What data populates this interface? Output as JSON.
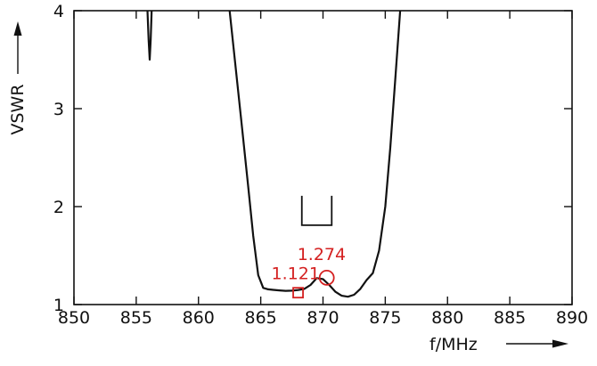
{
  "chart_data": {
    "type": "line",
    "xlabel": "f/MHz",
    "ylabel": "VSWR",
    "xlim": [
      850,
      890
    ],
    "ylim": [
      1,
      4
    ],
    "x_ticks": [
      "850",
      "855",
      "860",
      "865",
      "870",
      "875",
      "880",
      "885",
      "890"
    ],
    "y_ticks": [
      "1",
      "2",
      "3",
      "4"
    ],
    "grid": false,
    "series": [
      {
        "color": "#111111",
        "x": [
          855.9,
          856.0,
          856.08,
          856.16,
          856.24
        ],
        "y": [
          4.0,
          3.7,
          3.5,
          3.7,
          4.0
        ]
      },
      {
        "color": "#111111",
        "x": [
          862.5,
          863.0,
          863.5,
          864.0,
          864.4,
          864.8,
          865.2,
          865.6,
          866.0,
          866.5,
          867.0,
          867.5,
          868.0,
          868.5,
          869.0,
          869.5,
          870.0,
          870.5,
          871.0,
          871.5,
          872.0,
          872.5,
          873.0,
          873.5,
          874.0,
          874.5,
          875.0,
          875.4,
          875.8,
          876.2
        ],
        "y": [
          4.0,
          3.4,
          2.8,
          2.2,
          1.7,
          1.3,
          1.17,
          1.155,
          1.15,
          1.145,
          1.14,
          1.142,
          1.148,
          1.16,
          1.2,
          1.27,
          1.26,
          1.2,
          1.13,
          1.09,
          1.08,
          1.1,
          1.16,
          1.25,
          1.32,
          1.55,
          2.0,
          2.6,
          3.3,
          4.0
        ]
      }
    ],
    "markers": [
      {
        "label": "1.121",
        "shape": "square",
        "x": 868.0,
        "y": 1.121,
        "color": "#d42020"
      },
      {
        "label": "1.274",
        "shape": "circle",
        "x": 870.3,
        "y": 1.274,
        "color": "#d42020"
      }
    ],
    "bracket_symbol": {
      "x_from": 868.3,
      "x_to": 870.7,
      "y_top": 2.11,
      "y_bottom": 1.81,
      "color": "#111111"
    }
  }
}
